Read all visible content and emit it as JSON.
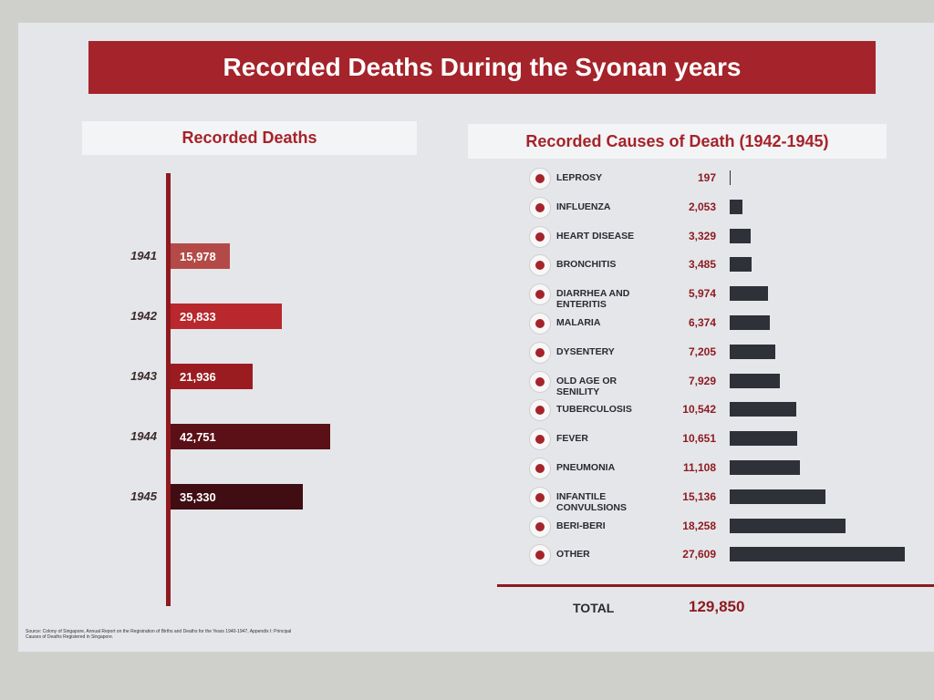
{
  "title": "Recorded Deaths During the Syonan years",
  "source": "Source: Colony of Singapore, Annual Report on the Registration of Births and Deaths for the Years 1940-1947, Appendix I: Principal Causes of Deaths Registered in Singapore.",
  "chart_data": [
    {
      "type": "bar",
      "orientation": "horizontal",
      "title": "Recorded Deaths",
      "categories": [
        "1941",
        "1942",
        "1943",
        "1944",
        "1945"
      ],
      "values": [
        15978,
        29833,
        21936,
        42751,
        35330
      ],
      "value_labels": [
        "15,978",
        "29,833",
        "21,936",
        "42,751",
        "35,330"
      ],
      "colors": [
        "#b44a47",
        "#b8282c",
        "#9a1c20",
        "#5a1016",
        "#3f0d12"
      ]
    },
    {
      "type": "bar",
      "orientation": "horizontal",
      "title": "Recorded Causes of Death (1942-1945)",
      "categories": [
        "LEPROSY",
        "INFLUENZA",
        "HEART DISEASE",
        "BRONCHITIS",
        "DIARRHEA AND ENTERITIS",
        "MALARIA",
        "DYSENTERY",
        "OLD AGE OR SENILITY",
        "TUBERCULOSIS",
        "FEVER",
        "PNEUMONIA",
        "INFANTILE CONVULSIONS",
        "BERI-BERI",
        "OTHER"
      ],
      "values": [
        197,
        2053,
        3329,
        3485,
        5974,
        6374,
        7205,
        7929,
        10542,
        10651,
        11108,
        15136,
        18258,
        27609
      ],
      "value_labels": [
        "197",
        "2,053",
        "3,329",
        "3,485",
        "5,974",
        "6,374",
        "7,205",
        "7,929",
        "10,542",
        "10,651",
        "11,108",
        "15,136",
        "18,258",
        "27,609"
      ],
      "color": "#2f3139",
      "total": {
        "label": "TOTAL",
        "value": 129850,
        "value_label": "129,850"
      }
    }
  ]
}
